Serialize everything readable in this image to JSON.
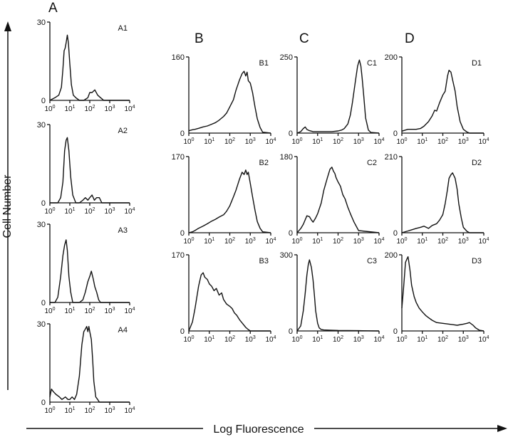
{
  "figure": {
    "y_axis_label": "Cell Number",
    "x_axis_label": "Log Fluorescence",
    "column_labels": [
      "A",
      "B",
      "C",
      "D"
    ]
  },
  "chart_data": [
    {
      "id": "A1",
      "type": "line",
      "title": "A1",
      "xlabel": "Log Fluorescence",
      "ylabel": "Cell Number",
      "xscale": "log",
      "xlim": [
        1,
        10000
      ],
      "ylim": [
        0,
        30
      ],
      "ytick_label": "30",
      "xticks": [
        "10",
        "10",
        "10",
        "10",
        "10"
      ],
      "xtick_exps": [
        "0",
        "1",
        "2",
        "3",
        "4"
      ],
      "x": [
        1,
        1.8,
        2.8,
        3.8,
        4.5,
        5.2,
        5.8,
        6.5,
        7.5,
        8.5,
        10,
        12,
        15,
        20,
        30,
        50,
        80,
        100,
        130,
        180,
        250,
        350,
        500,
        700,
        1000,
        10000
      ],
      "y": [
        0,
        1,
        2,
        5,
        12,
        19,
        20,
        22,
        25,
        22,
        14,
        6,
        2,
        1,
        0,
        0,
        1,
        3,
        3,
        4,
        2,
        1,
        0,
        0,
        0,
        0
      ]
    },
    {
      "id": "A2",
      "type": "line",
      "title": "A2",
      "xlabel": "Log Fluorescence",
      "ylabel": "Cell Number",
      "xscale": "log",
      "xlim": [
        1,
        10000
      ],
      "ylim": [
        0,
        30
      ],
      "ytick_label": "30",
      "xticks": [
        "10",
        "10",
        "10",
        "10",
        "10"
      ],
      "xtick_exps": [
        "0",
        "1",
        "2",
        "3",
        "4"
      ],
      "x": [
        1,
        2.5,
        3.5,
        4.5,
        5.5,
        6.5,
        7.5,
        9,
        11,
        14,
        20,
        30,
        45,
        60,
        80,
        100,
        130,
        170,
        220,
        300,
        400,
        10000
      ],
      "y": [
        0,
        0,
        2,
        8,
        20,
        24,
        25,
        20,
        10,
        3,
        0,
        0,
        1,
        2,
        1,
        2,
        3,
        1,
        2,
        2,
        0,
        0
      ]
    },
    {
      "id": "A3",
      "type": "line",
      "title": "A3",
      "xlabel": "Log Fluorescence",
      "ylabel": "Cell Number",
      "xscale": "log",
      "xlim": [
        1,
        10000
      ],
      "ylim": [
        0,
        30
      ],
      "ytick_label": "30",
      "xticks": [
        "10",
        "10",
        "10",
        "10",
        "10"
      ],
      "xtick_exps": [
        "0",
        "1",
        "2",
        "3",
        "4"
      ],
      "x": [
        1,
        1.8,
        2.5,
        3.5,
        4.5,
        5.5,
        6.5,
        7.5,
        9,
        11,
        14,
        20,
        30,
        45,
        60,
        80,
        100,
        120,
        150,
        180,
        220,
        280,
        350,
        10000
      ],
      "y": [
        0,
        0,
        2,
        10,
        18,
        22,
        24,
        20,
        10,
        4,
        0,
        0,
        0,
        1,
        4,
        8,
        10,
        12,
        9,
        6,
        4,
        1,
        0,
        0
      ]
    },
    {
      "id": "A4",
      "type": "line",
      "title": "A4",
      "xlabel": "Log Fluorescence",
      "ylabel": "Cell Number",
      "xscale": "log",
      "xlim": [
        1,
        10000
      ],
      "ylim": [
        0,
        30
      ],
      "ytick_label": "30",
      "xticks": [
        "10",
        "10",
        "10",
        "10",
        "10"
      ],
      "xtick_exps": [
        "0",
        "1",
        "2",
        "3",
        "4"
      ],
      "x": [
        1,
        1.2,
        1.5,
        2,
        3,
        4,
        6,
        8,
        10,
        13,
        17,
        22,
        30,
        40,
        50,
        60,
        70,
        80,
        90,
        100,
        120,
        140,
        160,
        200,
        250,
        300,
        10000
      ],
      "y": [
        2,
        5,
        4,
        3,
        2,
        1,
        2,
        1,
        1,
        2,
        1,
        3,
        10,
        22,
        27,
        28,
        29,
        27,
        29,
        27,
        24,
        16,
        8,
        2,
        1,
        0,
        0
      ]
    },
    {
      "id": "B1",
      "type": "line",
      "title": "B1",
      "xlabel": "Log Fluorescence",
      "ylabel": "Cell Number",
      "xscale": "log",
      "xlim": [
        1,
        10000
      ],
      "ylim": [
        0,
        160
      ],
      "ytick_label": "160",
      "xticks": [
        "10",
        "10",
        "10",
        "10",
        "10"
      ],
      "xtick_exps": [
        "0",
        "1",
        "2",
        "3",
        "4"
      ],
      "x": [
        1,
        1.5,
        2,
        3,
        5,
        8,
        12,
        20,
        30,
        50,
        70,
        100,
        150,
        200,
        300,
        400,
        500,
        600,
        700,
        800,
        1000,
        1300,
        1700,
        2200,
        3000,
        4000,
        10000
      ],
      "y": [
        5,
        7,
        8,
        10,
        13,
        15,
        18,
        22,
        27,
        35,
        42,
        55,
        70,
        90,
        112,
        125,
        130,
        120,
        128,
        110,
        105,
        85,
        55,
        30,
        12,
        2,
        0
      ]
    },
    {
      "id": "B2",
      "type": "line",
      "title": "B2",
      "xlabel": "Log Fluorescence",
      "ylabel": "Cell Number",
      "xscale": "log",
      "xlim": [
        1,
        10000
      ],
      "ylim": [
        0,
        170
      ],
      "ytick_label": "170",
      "xticks": [
        "10",
        "10",
        "10",
        "10",
        "10"
      ],
      "xtick_exps": [
        "0",
        "1",
        "2",
        "3",
        "4"
      ],
      "x": [
        1,
        1.5,
        2,
        3,
        5,
        8,
        12,
        20,
        30,
        50,
        70,
        100,
        150,
        200,
        300,
        400,
        500,
        600,
        700,
        800,
        1000,
        1300,
        1700,
        2200,
        3000,
        4000,
        10000
      ],
      "y": [
        0,
        2,
        5,
        10,
        15,
        20,
        25,
        30,
        35,
        40,
        48,
        60,
        80,
        95,
        120,
        135,
        130,
        140,
        130,
        135,
        110,
        80,
        50,
        25,
        10,
        2,
        0
      ]
    },
    {
      "id": "B3",
      "type": "line",
      "title": "B3",
      "xlabel": "Log Fluorescence",
      "ylabel": "Cell Number",
      "xscale": "log",
      "xlim": [
        1,
        10000
      ],
      "ylim": [
        0,
        170
      ],
      "ytick_label": "170",
      "xticks": [
        "10",
        "10",
        "10",
        "10",
        "10"
      ],
      "xtick_exps": [
        "0",
        "1",
        "2",
        "3",
        "4"
      ],
      "x": [
        1,
        1.5,
        2,
        3,
        4,
        5,
        6,
        8,
        10,
        13,
        17,
        22,
        30,
        40,
        50,
        70,
        100,
        130,
        170,
        220,
        300,
        400,
        600,
        800,
        1000,
        10000
      ],
      "y": [
        0,
        20,
        50,
        100,
        125,
        130,
        120,
        115,
        105,
        100,
        90,
        95,
        80,
        85,
        70,
        60,
        55,
        50,
        40,
        35,
        25,
        18,
        8,
        3,
        0,
        0
      ]
    },
    {
      "id": "C1",
      "type": "line",
      "title": "C1",
      "xlabel": "Log Fluorescence",
      "ylabel": "Cell Number",
      "xscale": "log",
      "xlim": [
        1,
        10000
      ],
      "ylim": [
        0,
        250
      ],
      "ytick_label": "250",
      "xticks": [
        "10",
        "10",
        "10",
        "10",
        "10"
      ],
      "xtick_exps": [
        "0",
        "1",
        "2",
        "3",
        "4"
      ],
      "x": [
        1,
        1.5,
        2,
        2.5,
        3,
        4,
        6,
        10,
        20,
        50,
        100,
        150,
        200,
        300,
        400,
        500,
        700,
        900,
        1100,
        1300,
        1500,
        1800,
        2200,
        3000,
        4000,
        10000
      ],
      "y": [
        0,
        5,
        15,
        20,
        12,
        8,
        5,
        5,
        5,
        5,
        7,
        10,
        15,
        30,
        60,
        100,
        170,
        220,
        240,
        220,
        180,
        120,
        50,
        10,
        2,
        0
      ]
    },
    {
      "id": "C2",
      "type": "line",
      "title": "C2",
      "xlabel": "Log Fluorescence",
      "ylabel": "Cell Number",
      "xscale": "log",
      "xlim": [
        1,
        10000
      ],
      "ylim": [
        0,
        180
      ],
      "ytick_label": "180",
      "xticks": [
        "10",
        "10",
        "10",
        "10",
        "10"
      ],
      "xtick_exps": [
        "0",
        "1",
        "2",
        "3",
        "4"
      ],
      "x": [
        1,
        1.5,
        2,
        3,
        4,
        5,
        6,
        8,
        10,
        15,
        20,
        30,
        40,
        50,
        60,
        70,
        80,
        100,
        130,
        170,
        220,
        300,
        400,
        600,
        1000,
        10000
      ],
      "y": [
        0,
        10,
        20,
        40,
        38,
        30,
        25,
        35,
        45,
        70,
        100,
        130,
        150,
        155,
        145,
        140,
        130,
        120,
        110,
        90,
        80,
        60,
        45,
        25,
        5,
        0
      ]
    },
    {
      "id": "C3",
      "type": "line",
      "title": "C3",
      "xlabel": "Log Fluorescence",
      "ylabel": "Cell Number",
      "xscale": "log",
      "xlim": [
        1,
        10000
      ],
      "ylim": [
        0,
        300
      ],
      "ytick_label": "300",
      "xticks": [
        "10",
        "10",
        "10",
        "10",
        "10"
      ],
      "xtick_exps": [
        "0",
        "1",
        "2",
        "3",
        "4"
      ],
      "x": [
        1,
        1.5,
        2,
        2.5,
        3,
        3.5,
        4,
        5,
        6,
        7,
        8,
        10,
        12,
        15,
        20,
        40,
        100,
        1000,
        10000
      ],
      "y": [
        0,
        20,
        80,
        150,
        220,
        260,
        280,
        250,
        200,
        140,
        80,
        30,
        12,
        6,
        4,
        3,
        2,
        1,
        0
      ]
    },
    {
      "id": "D1",
      "type": "line",
      "title": "D1",
      "xlabel": "Log Fluorescence",
      "ylabel": "Cell Number",
      "xscale": "log",
      "xlim": [
        1,
        10000
      ],
      "ylim": [
        0,
        200
      ],
      "ytick_label": "200",
      "xticks": [
        "10",
        "10",
        "10",
        "10",
        "10"
      ],
      "xtick_exps": [
        "0",
        "1",
        "2",
        "3",
        "4"
      ],
      "x": [
        1,
        1.5,
        2,
        3,
        5,
        8,
        12,
        20,
        30,
        40,
        50,
        70,
        100,
        130,
        170,
        200,
        250,
        300,
        400,
        500,
        700,
        1000,
        1500,
        2000,
        10000
      ],
      "y": [
        5,
        8,
        10,
        10,
        10,
        12,
        18,
        30,
        45,
        60,
        58,
        80,
        100,
        110,
        150,
        165,
        160,
        140,
        110,
        70,
        30,
        10,
        3,
        0,
        0
      ]
    },
    {
      "id": "D2",
      "type": "line",
      "title": "D2",
      "xlabel": "Log Fluorescence",
      "ylabel": "Cell Number",
      "xscale": "log",
      "xlim": [
        1,
        10000
      ],
      "ylim": [
        0,
        210
      ],
      "ytick_label": "210",
      "xticks": [
        "10",
        "10",
        "10",
        "10",
        "10"
      ],
      "xtick_exps": [
        "0",
        "1",
        "2",
        "3",
        "4"
      ],
      "x": [
        1,
        1.5,
        2,
        3,
        5,
        8,
        12,
        20,
        30,
        50,
        70,
        100,
        130,
        170,
        200,
        250,
        300,
        400,
        500,
        600,
        800,
        1000,
        1500,
        2000,
        10000
      ],
      "y": [
        0,
        3,
        5,
        8,
        12,
        15,
        18,
        12,
        20,
        25,
        35,
        50,
        80,
        120,
        150,
        160,
        165,
        150,
        120,
        80,
        40,
        15,
        4,
        0,
        0
      ]
    },
    {
      "id": "D3",
      "type": "line",
      "title": "D3",
      "xlabel": "Log Fluorescence",
      "ylabel": "Cell Number",
      "xscale": "log",
      "xlim": [
        1,
        10000
      ],
      "ylim": [
        0,
        200
      ],
      "ytick_label": "200",
      "xticks": [
        "10",
        "10",
        "10",
        "10",
        "10"
      ],
      "xtick_exps": [
        "0",
        "1",
        "2",
        "3",
        "4"
      ],
      "x": [
        1,
        1.2,
        1.5,
        1.8,
        2,
        2.5,
        3,
        4,
        5,
        7,
        10,
        15,
        20,
        30,
        50,
        100,
        200,
        500,
        1000,
        1500,
        2000,
        3000,
        4000,
        6000,
        10000
      ],
      "y": [
        60,
        110,
        180,
        190,
        195,
        160,
        120,
        90,
        75,
        60,
        50,
        40,
        35,
        28,
        22,
        20,
        18,
        15,
        18,
        20,
        22,
        15,
        8,
        2,
        0
      ]
    }
  ]
}
